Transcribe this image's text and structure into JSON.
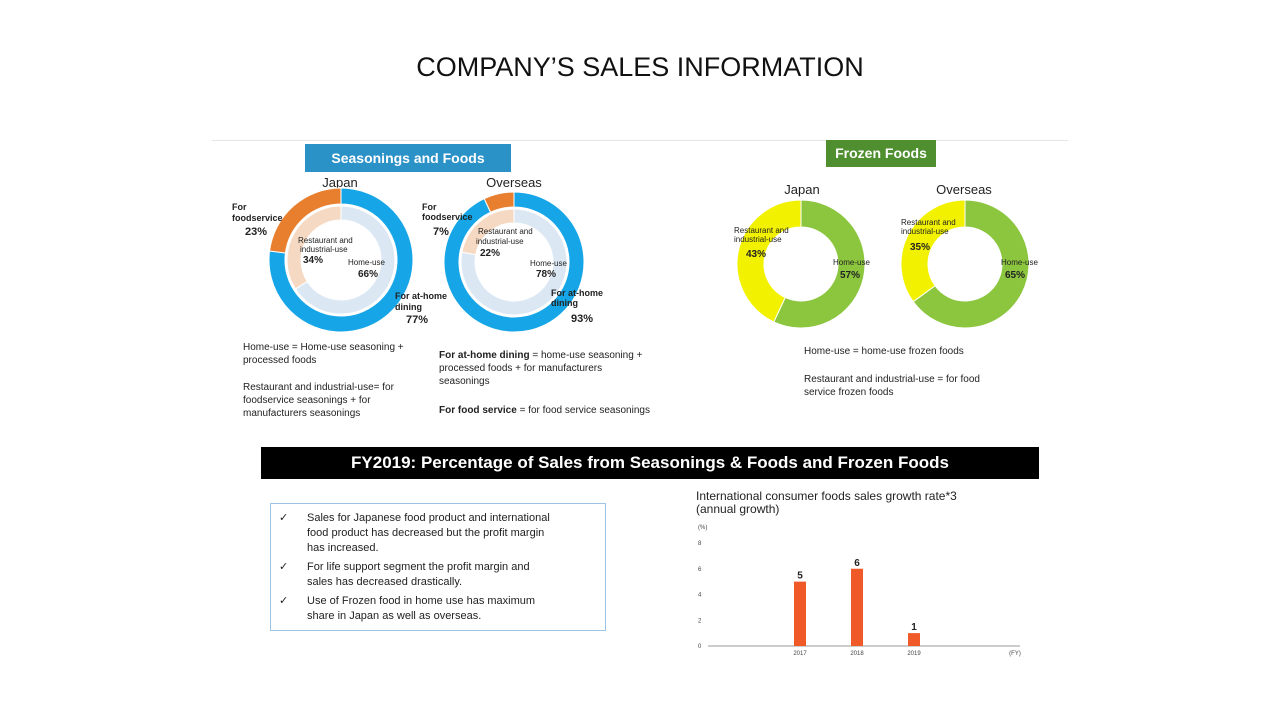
{
  "title": "COMPANY’S SALES INFORMATION",
  "seasonings": {
    "header": "Seasonings and Foods",
    "japan": {
      "title": "Japan",
      "outer_label_1": "For",
      "outer_label_2": "foodservice",
      "outer_pct": "23%",
      "inner_label_1": "Restaurant and",
      "inner_label_2": "industrial-use",
      "inner_pct": "34%",
      "home_label": "Home-use",
      "home_pct": "66%",
      "athome_label_1": "For at-home",
      "athome_label_2": "dining",
      "athome_pct": "77%"
    },
    "overseas": {
      "title": "Overseas",
      "outer_label_1": "For",
      "outer_label_2": "foodservice",
      "outer_pct": "7%",
      "inner_label_1": "Restaurant and",
      "inner_label_2": "industrial-use",
      "inner_pct": "22%",
      "home_label": "Home-use",
      "home_pct": "78%",
      "athome_label_1": "For at-home",
      "athome_label_2": "dining",
      "athome_pct": "93%"
    },
    "note_left_1": "Home-use = Home-use seasoning +",
    "note_left_2": "processed foods",
    "note_left_3": "Restaurant and industrial-use= for",
    "note_left_4": "foodservice seasonings + for",
    "note_left_5": "manufacturers seasonings",
    "note_right_1_bold": "For at-home dining",
    "note_right_1_rest": " = home-use seasoning +",
    "note_right_2": "processed foods + for manufacturers",
    "note_right_3": "seasonings",
    "note_right_4_bold": "For food service",
    "note_right_4_rest": " = for food service seasonings"
  },
  "frozen": {
    "header": "Frozen Foods",
    "japan": {
      "title": "Japan",
      "rest_label_1": "Restaurant and",
      "rest_label_2": "industrial-use",
      "rest_pct": "43%",
      "home_label": "Home-use",
      "home_pct": "57%"
    },
    "overseas": {
      "title": "Overseas",
      "rest_label_1": "Restaurant and",
      "rest_label_2": "industrial-use",
      "rest_pct": "35%",
      "home_label": "Home-use",
      "home_pct": "65%"
    },
    "note_1": "Home-use = home-use frozen foods",
    "note_2": "Restaurant and industrial-use = for food",
    "note_3": "service frozen foods"
  },
  "banner": "FY2019: Percentage of Sales from Seasonings & Foods and Frozen Foods",
  "bullets": [
    {
      "check": "✓",
      "line1": "Sales for Japanese food product and international",
      "line2": "food product has decreased but the profit margin",
      "line3": "has increased."
    },
    {
      "check": "✓",
      "line1": "For life support segment the profit margin and",
      "line2": "sales has decreased drastically."
    },
    {
      "check": "✓",
      "line1": "Use of Frozen food in home use has maximum",
      "line2": "share in Japan as well as overseas."
    }
  ],
  "chart_title_1": "International consumer foods sales growth rate*3",
  "chart_title_2": "(annual growth)",
  "colors": {
    "blue": "#16a6e8",
    "light_blue_inner": "#dbe8f4",
    "orange": "#e87f2f",
    "peach_inner": "#f6d9c2",
    "green": "#8cc63f",
    "yellow": "#f2f200",
    "bar": "#f05a28"
  },
  "chart_data": [
    {
      "type": "pie",
      "title": "Japan",
      "ring": "outer",
      "labels": [
        "For at-home dining",
        "For foodservice"
      ],
      "values": [
        77,
        23
      ]
    },
    {
      "type": "pie",
      "title": "Japan",
      "ring": "inner",
      "labels": [
        "Home-use",
        "Restaurant and industrial-use"
      ],
      "values": [
        66,
        34
      ]
    },
    {
      "type": "pie",
      "title": "Overseas",
      "ring": "outer",
      "labels": [
        "For at-home dining",
        "For foodservice"
      ],
      "values": [
        93,
        7
      ]
    },
    {
      "type": "pie",
      "title": "Overseas",
      "ring": "inner",
      "labels": [
        "Home-use",
        "Restaurant and industrial-use"
      ],
      "values": [
        78,
        22
      ]
    },
    {
      "type": "pie",
      "title": "Japan",
      "labels": [
        "Home-use",
        "Restaurant and industrial-use"
      ],
      "values": [
        57,
        43
      ]
    },
    {
      "type": "pie",
      "title": "Overseas",
      "labels": [
        "Home-use",
        "Restaurant and industrial-use"
      ],
      "values": [
        65,
        35
      ]
    },
    {
      "type": "bar",
      "title": "International consumer foods sales growth rate*3 (annual growth)",
      "ylabel": "(%)",
      "xlabel": "(FY)",
      "categories": [
        "2017",
        "2018",
        "2019"
      ],
      "values": [
        5,
        6,
        1
      ],
      "ylim": [
        0,
        8
      ],
      "yticks": [
        0,
        2,
        4,
        6,
        8
      ],
      "grid": false
    }
  ]
}
